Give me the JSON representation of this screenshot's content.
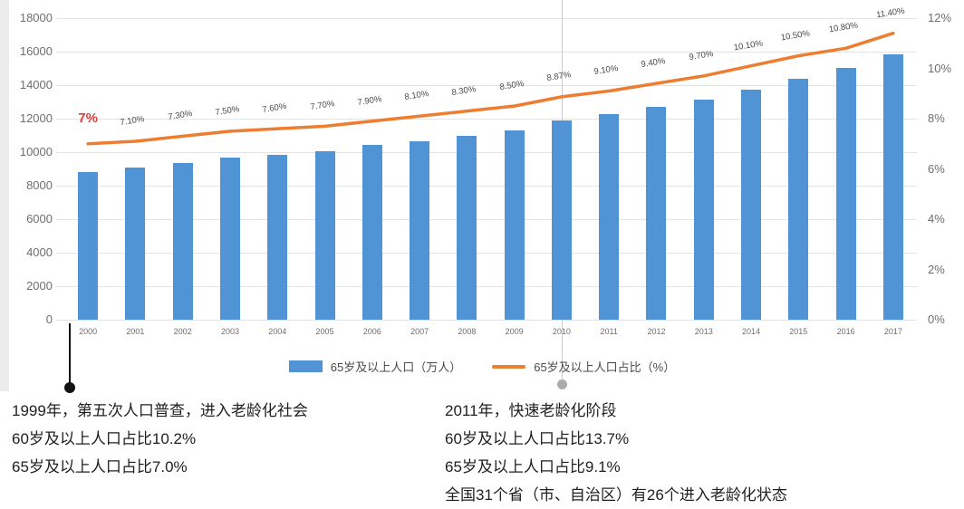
{
  "colors": {
    "bar": "#5094D6",
    "line": "#ED7D31",
    "highlight_red": "#E03C32",
    "grid": "#E3E3E3",
    "axis_text": "#6E6E6E",
    "label_text": "#4a4a4a",
    "note_text": "#1f1f1f"
  },
  "chart_data": {
    "type": "bar",
    "subtype": "bar-line combo, dual axis",
    "categories": [
      "2000",
      "2001",
      "2002",
      "2003",
      "2004",
      "2005",
      "2006",
      "2007",
      "2008",
      "2009",
      "2010",
      "2011",
      "2012",
      "2013",
      "2014",
      "2015",
      "2016",
      "2017"
    ],
    "series": [
      {
        "name": "65岁及以上人口（万人）",
        "type": "bar",
        "axis": "left",
        "values": [
          8821,
          9062,
          9377,
          9692,
          9857,
          10055,
          10419,
          10636,
          10956,
          11307,
          11894,
          12288,
          12714,
          13161,
          13755,
          14386,
          15003,
          15831
        ]
      },
      {
        "name": "65岁及以上人口占比（%）",
        "type": "line",
        "axis": "right",
        "values": [
          7.0,
          7.1,
          7.3,
          7.5,
          7.6,
          7.7,
          7.9,
          8.1,
          8.3,
          8.5,
          8.87,
          9.1,
          9.4,
          9.7,
          10.1,
          10.5,
          10.8,
          11.4
        ],
        "point_labels": [
          "7%",
          "7.10%",
          "7.30%",
          "7.50%",
          "7.60%",
          "7.70%",
          "7.90%",
          "8.10%",
          "8.30%",
          "8.50%",
          "8.87%",
          "9.10%",
          "9.40%",
          "9.70%",
          "10.10%",
          "10.50%",
          "10.80%",
          "11.40%"
        ]
      }
    ],
    "left_axis": {
      "min": 0,
      "max": 18000,
      "step": 2000,
      "ticks": [
        "18000",
        "16000",
        "14000",
        "12000",
        "10000",
        "8000",
        "6000",
        "4000",
        "2000",
        "0"
      ]
    },
    "right_axis": {
      "min": 0,
      "max": 12,
      "step": 2,
      "ticks": [
        "12%",
        "10%",
        "8%",
        "6%",
        "4%",
        "2%",
        "0%"
      ]
    },
    "grid": true,
    "legend_position": "bottom"
  },
  "legend": {
    "items": [
      {
        "swatch": "bar",
        "label": "65岁及以上人口（万人）"
      },
      {
        "swatch": "line",
        "label": "65岁及以上人口占比（%）"
      }
    ]
  },
  "annotations": {
    "left": {
      "lines": [
        "1999年，第五次人口普查，进入老龄化社会",
        "60岁及以上人口占比10.2%",
        "65岁及以上人口占比7.0%"
      ]
    },
    "right": {
      "lines": [
        "2011年，快速老龄化阶段",
        "60岁及以上人口占比13.7%",
        "65岁及以上人口占比9.1%",
        "全国31个省（市、自治区）有26个进入老龄化状态"
      ]
    }
  }
}
